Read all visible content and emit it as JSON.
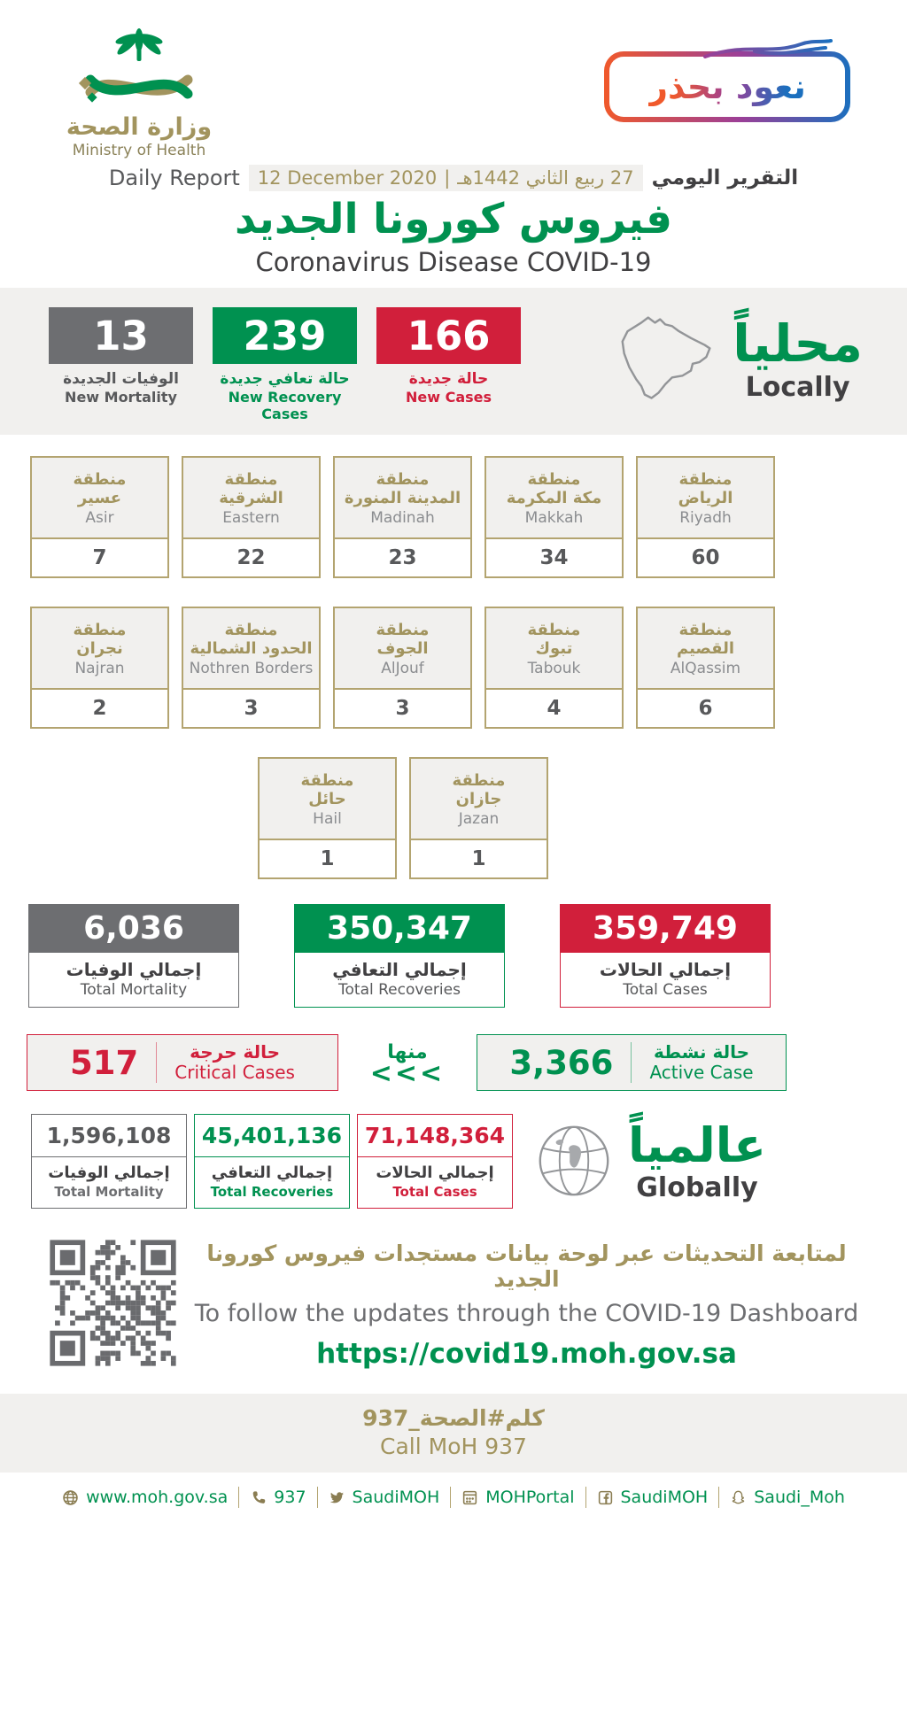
{
  "colors": {
    "green": "#009150",
    "red": "#d11f3b",
    "gray": "#6d6e71",
    "tan": "#a2945e",
    "tan_border": "#b3a470",
    "dark": "#414042",
    "mid_gray": "#58595b",
    "band_bg": "#f1f0ee"
  },
  "header": {
    "logo_ar": "وزارة الصحة",
    "logo_en": "Ministry of Health",
    "badge_text": "نعود بحذر",
    "report_en": "Daily Report",
    "date_gregorian": "12 December 2020",
    "date_divider": "|",
    "date_hijri": "27 ربيع الثاني 1442هـ",
    "report_ar": "التقرير اليومي",
    "title_ar": "فيروس كورونا الجديد",
    "title_en": "Coronavirus Disease COVID-19"
  },
  "local": {
    "heading_ar": "محلياً",
    "heading_en": "Locally",
    "stats": [
      {
        "value": "13",
        "label_ar": "الوفيات الجديدة",
        "label_en": "New Mortality",
        "box_color": "#6d6e71",
        "text_color": "#58595b"
      },
      {
        "value": "239",
        "label_ar": "حالة تعافي جديدة",
        "label_en": "New Recovery Cases",
        "box_color": "#009150",
        "text_color": "#009150"
      },
      {
        "value": "166",
        "label_ar": "حالة جديدة",
        "label_en": "New Cases",
        "box_color": "#d11f3b",
        "text_color": "#d11f3b"
      }
    ]
  },
  "regions": {
    "prefix_ar": "منطقة",
    "row1": [
      {
        "name_ar": "عسير",
        "name_en": "Asir",
        "value": "7"
      },
      {
        "name_ar": "الشرقية",
        "name_en": "Eastern",
        "value": "22"
      },
      {
        "name_ar": "المدينة المنورة",
        "name_en": "Madinah",
        "value": "23"
      },
      {
        "name_ar": "مكة المكرمة",
        "name_en": "Makkah",
        "value": "34"
      },
      {
        "name_ar": "الرياض",
        "name_en": "Riyadh",
        "value": "60"
      }
    ],
    "row2": [
      {
        "name_ar": "نجران",
        "name_en": "Najran",
        "value": "2"
      },
      {
        "name_ar": "الحدود الشمالية",
        "name_en": "Nothren Borders",
        "value": "3"
      },
      {
        "name_ar": "الجوف",
        "name_en": "AlJouf",
        "value": "3"
      },
      {
        "name_ar": "تبوك",
        "name_en": "Tabouk",
        "value": "4"
      },
      {
        "name_ar": "القصيم",
        "name_en": "AlQassim",
        "value": "6"
      }
    ],
    "row3": [
      {
        "name_ar": "حائل",
        "name_en": "Hail",
        "value": "1"
      },
      {
        "name_ar": "جازان",
        "name_en": "Jazan",
        "value": "1"
      }
    ]
  },
  "totals": [
    {
      "value": "6,036",
      "label_ar": "إجمالي الوفيات",
      "label_en": "Total Mortality",
      "color": "#6d6e71"
    },
    {
      "value": "350,347",
      "label_ar": "إجمالي التعافي",
      "label_en": "Total Recoveries",
      "color": "#009150"
    },
    {
      "value": "359,749",
      "label_ar": "إجمالي الحالات",
      "label_en": "Total Cases",
      "color": "#d11f3b"
    }
  ],
  "breakdown": {
    "critical": {
      "value": "517",
      "label_ar": "حالة حرجة",
      "label_en": "Critical Cases"
    },
    "of_which_ar": "منها",
    "arrows": "<<<",
    "active": {
      "value": "3,366",
      "label_ar": "حالة نشطة",
      "label_en": "Active Case"
    }
  },
  "global": {
    "heading_ar": "عالمياً",
    "heading_en": "Globally",
    "stats": [
      {
        "value": "1,596,108",
        "label_ar": "إجمالي الوفيات",
        "label_en": "Total Mortality",
        "color": "#6d6e71",
        "value_color": "#58595b"
      },
      {
        "value": "45,401,136",
        "label_ar": "إجمالي التعافي",
        "label_en": "Total Recoveries",
        "color": "#009150",
        "value_color": "#009150"
      },
      {
        "value": "71,148,364",
        "label_ar": "إجمالي الحالات",
        "label_en": "Total Cases",
        "color": "#d11f3b",
        "value_color": "#d11f3b"
      }
    ]
  },
  "dashboard": {
    "line_ar": "لمتابعة التحديثات عبر لوحة بيانات مستجدات فيروس كورونا الجديد",
    "line_en": "To follow the updates through the COVID-19 Dashboard",
    "url": "https://covid19.moh.gov.sa"
  },
  "call": {
    "line_ar": "كلم#الصحة_937",
    "line_en": "Call MoH 937"
  },
  "footer": {
    "links": [
      {
        "icon": "globe-icon",
        "label": "www.moh.gov.sa"
      },
      {
        "icon": "phone-icon",
        "label": "937"
      },
      {
        "icon": "twitter-icon",
        "label": "SaudiMOH"
      },
      {
        "icon": "portal-icon",
        "label": "MOHPortal"
      },
      {
        "icon": "facebook-icon",
        "label": "SaudiMOH"
      },
      {
        "icon": "snapchat-icon",
        "label": "Saudi_Moh"
      }
    ]
  }
}
